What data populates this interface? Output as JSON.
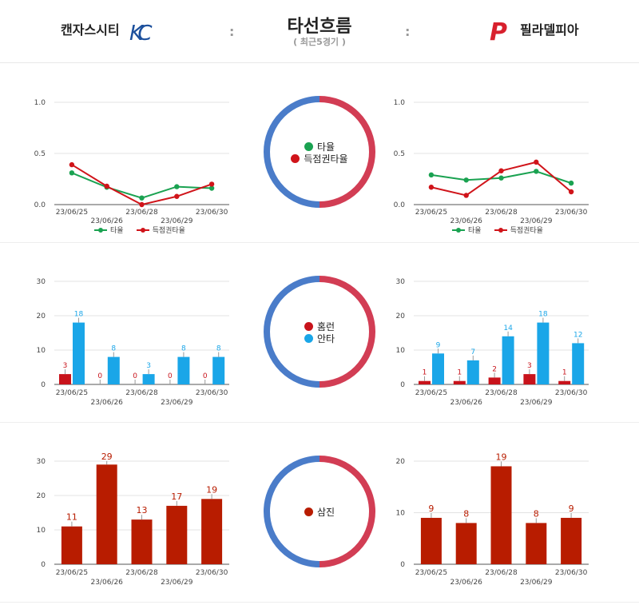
{
  "header": {
    "team_left": "캔자스시티",
    "team_right": "필라델피아",
    "title": "타선흐름",
    "subtitle": "( 최근5경기 )",
    "separator": ":",
    "logo_left": "KC",
    "logo_right": "P"
  },
  "colors": {
    "avg": "#1aa251",
    "scoring": "#d0141a",
    "homerun": "#c8131b",
    "hits": "#1aa6e8",
    "strikeout": "#b81c00",
    "ring_blue": "#4a7cc9",
    "ring_red": "#d23d54",
    "kc_blue": "#1b4f9c",
    "phi_red": "#d8202d"
  },
  "legends": {
    "avg_section": [
      "타율",
      "득점권타율"
    ],
    "hits_section": [
      "홈런",
      "안타"
    ],
    "so_section": [
      "삼진"
    ]
  },
  "chart_data": [
    {
      "id": "kc-avg",
      "type": "line",
      "categories": [
        "23/06/25",
        "23/06/26",
        "23/06/28",
        "23/06/29",
        "23/06/30"
      ],
      "series": [
        {
          "name": "타율",
          "values": [
            0.31,
            0.17,
            0.065,
            0.175,
            0.16
          ]
        },
        {
          "name": "득점권타율",
          "values": [
            0.39,
            0.18,
            0.0,
            0.08,
            0.2
          ]
        }
      ],
      "yticks": [
        "0.0",
        "0.5",
        "1.0"
      ],
      "ylim": [
        0,
        1
      ],
      "grid": true,
      "legend_position": "bottom"
    },
    {
      "id": "phi-avg",
      "type": "line",
      "categories": [
        "23/06/25",
        "23/06/26",
        "23/06/28",
        "23/06/29",
        "23/06/30"
      ],
      "series": [
        {
          "name": "타율",
          "values": [
            0.29,
            0.24,
            0.26,
            0.325,
            0.21
          ]
        },
        {
          "name": "득점권타율",
          "values": [
            0.17,
            0.09,
            0.33,
            0.415,
            0.125
          ]
        }
      ],
      "yticks": [
        "0.0",
        "0.5",
        "1.0"
      ],
      "ylim": [
        0,
        1
      ],
      "grid": true,
      "legend_position": "bottom"
    },
    {
      "id": "kc-hits",
      "type": "bar",
      "categories": [
        "23/06/25",
        "23/06/26",
        "23/06/28",
        "23/06/29",
        "23/06/30"
      ],
      "series": [
        {
          "name": "홈런",
          "values": [
            3,
            0,
            0,
            0,
            0
          ]
        },
        {
          "name": "안타",
          "values": [
            18,
            8,
            3,
            8,
            8
          ]
        }
      ],
      "yticks": [
        "0",
        "10",
        "20",
        "30"
      ],
      "ylim": [
        0,
        30
      ],
      "grid": true
    },
    {
      "id": "phi-hits",
      "type": "bar",
      "categories": [
        "23/06/25",
        "23/06/26",
        "23/06/28",
        "23/06/29",
        "23/06/30"
      ],
      "series": [
        {
          "name": "홈런",
          "values": [
            1,
            1,
            2,
            3,
            1
          ]
        },
        {
          "name": "안타",
          "values": [
            9,
            7,
            14,
            18,
            12
          ]
        }
      ],
      "yticks": [
        "0",
        "10",
        "20",
        "30"
      ],
      "ylim": [
        0,
        30
      ],
      "grid": true
    },
    {
      "id": "kc-so",
      "type": "bar",
      "categories": [
        "23/06/25",
        "23/06/26",
        "23/06/28",
        "23/06/29",
        "23/06/30"
      ],
      "series": [
        {
          "name": "삼진",
          "values": [
            11,
            29,
            13,
            17,
            19
          ]
        }
      ],
      "yticks": [
        "0",
        "10",
        "20",
        "30"
      ],
      "ylim": [
        0,
        30
      ],
      "grid": true
    },
    {
      "id": "phi-so",
      "type": "bar",
      "categories": [
        "23/06/25",
        "23/06/26",
        "23/06/28",
        "23/06/29",
        "23/06/30"
      ],
      "series": [
        {
          "name": "삼진",
          "values": [
            9,
            8,
            19,
            8,
            9
          ]
        }
      ],
      "yticks": [
        "0",
        "10",
        "20"
      ],
      "ylim": [
        0,
        20
      ],
      "grid": true
    }
  ]
}
